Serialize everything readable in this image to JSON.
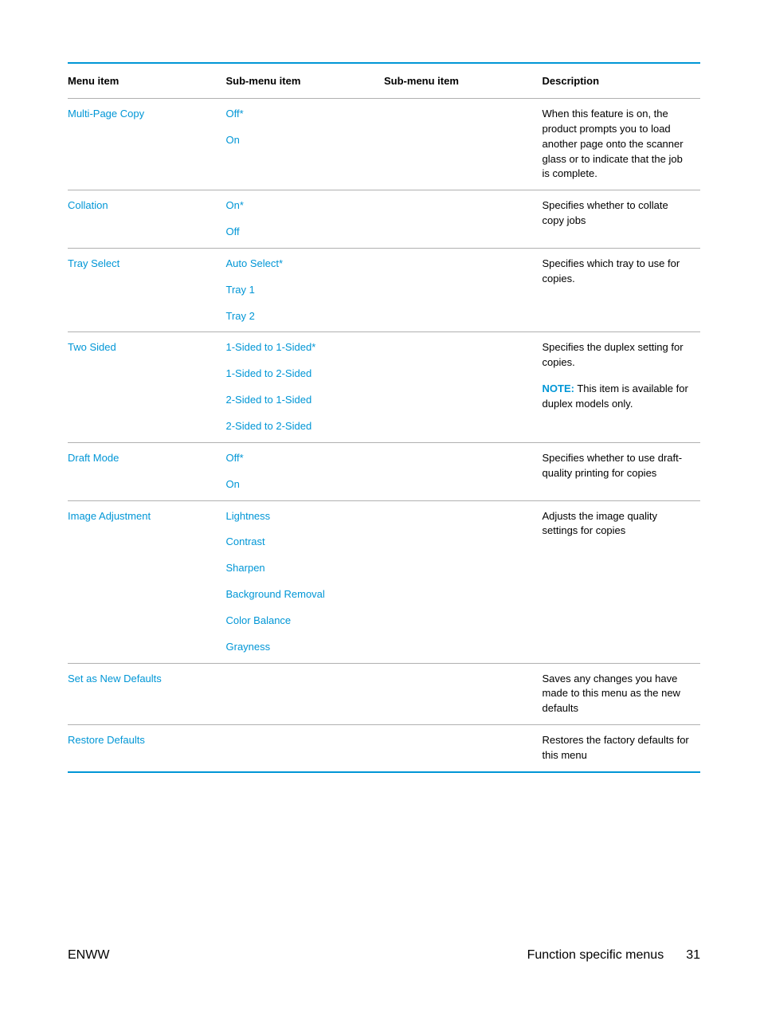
{
  "colors": {
    "accent": "#0096d6",
    "rule": "#b0b0b0",
    "text": "#000000",
    "background": "#ffffff"
  },
  "typography": {
    "body_fontsize_pt": 10,
    "header_fontsize_pt": 10,
    "footer_fontsize_pt": 12,
    "font_family": "Arial"
  },
  "table": {
    "headers": {
      "menu": "Menu item",
      "sub1": "Sub-menu item",
      "sub2": "Sub-menu item",
      "desc": "Description"
    },
    "column_widths_pct": [
      25,
      25,
      25,
      25
    ],
    "rows": [
      {
        "menu": "Multi-Page Copy",
        "sub1": [
          {
            "label": "Off",
            "default": true
          },
          {
            "label": "On",
            "default": false
          }
        ],
        "desc": [
          {
            "text": "When this feature is on, the product prompts you to load another page onto the scanner glass or to indicate that the job is complete."
          }
        ]
      },
      {
        "menu": "Collation",
        "sub1": [
          {
            "label": "On",
            "default": true
          },
          {
            "label": "Off",
            "default": false
          }
        ],
        "desc": [
          {
            "text": "Specifies whether to collate copy jobs"
          }
        ]
      },
      {
        "menu": "Tray Select",
        "sub1": [
          {
            "label": "Auto Select",
            "default": true
          },
          {
            "label": "Tray 1",
            "default": false
          },
          {
            "label": "Tray 2",
            "default": false
          }
        ],
        "desc": [
          {
            "text": "Specifies which tray to use for copies."
          }
        ]
      },
      {
        "menu": "Two Sided",
        "sub1": [
          {
            "label": "1-Sided to 1-Sided",
            "default": true
          },
          {
            "label": "1-Sided to 2-Sided",
            "default": false
          },
          {
            "label": "2-Sided to 1-Sided",
            "default": false
          },
          {
            "label": "2-Sided to 2-Sided",
            "default": false
          }
        ],
        "desc": [
          {
            "text": "Specifies the duplex setting for copies."
          },
          {
            "note_label": "NOTE:",
            "text": "This item is available for duplex models only."
          }
        ]
      },
      {
        "menu": "Draft Mode",
        "sub1": [
          {
            "label": "Off",
            "default": true
          },
          {
            "label": "On",
            "default": false
          }
        ],
        "desc": [
          {
            "text": "Specifies whether to use draft-quality printing for copies"
          }
        ]
      },
      {
        "menu": "Image Adjustment",
        "sub1": [
          {
            "label": "Lightness",
            "default": false
          },
          {
            "label": "Contrast",
            "default": false
          },
          {
            "label": "Sharpen",
            "default": false
          },
          {
            "label": "Background Removal",
            "default": false
          },
          {
            "label": "Color Balance",
            "default": false
          },
          {
            "label": "Grayness",
            "default": false
          }
        ],
        "desc": [
          {
            "text": "Adjusts the image quality settings for copies"
          }
        ]
      },
      {
        "menu": "Set as New Defaults",
        "sub1": [],
        "desc": [
          {
            "text": "Saves any changes you have made to this menu as the new defaults"
          }
        ]
      },
      {
        "menu": "Restore Defaults",
        "sub1": [],
        "desc": [
          {
            "text": "Restores the factory defaults for this menu"
          }
        ]
      }
    ]
  },
  "footer": {
    "left": "ENWW",
    "right_text": "Function specific menus",
    "page_number": "31"
  }
}
